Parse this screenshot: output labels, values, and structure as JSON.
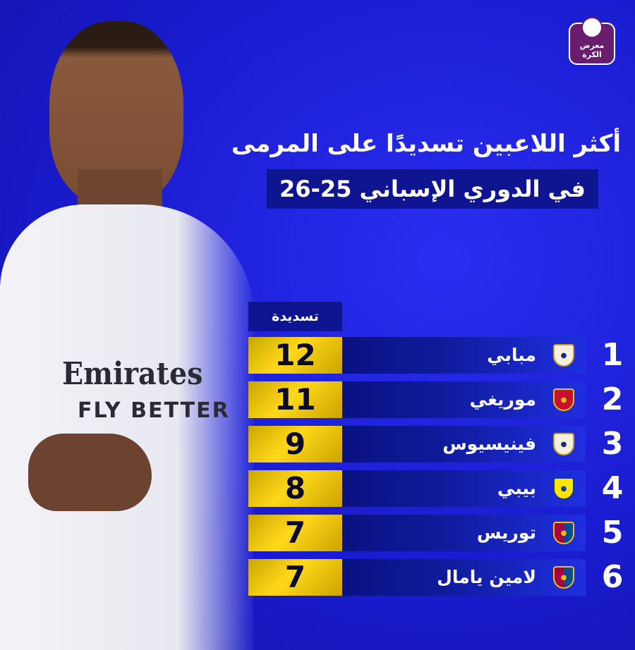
{
  "brand": {
    "logo_text": "معرض الكرة"
  },
  "title": {
    "line1": "أكثر اللاعبين تسديدًا على المرمى",
    "line2": "في الدوري الإسباني 25-26"
  },
  "table": {
    "column_header": "تسديدة",
    "rows": [
      {
        "rank": "1",
        "name": "مبابي",
        "club_icon": "real-madrid-crest",
        "value": "12"
      },
      {
        "rank": "2",
        "name": "موريغي",
        "club_icon": "mallorca-crest",
        "value": "11"
      },
      {
        "rank": "3",
        "name": "فينيسيوس",
        "club_icon": "real-madrid-crest",
        "value": "9"
      },
      {
        "rank": "4",
        "name": "بيبي",
        "club_icon": "villarreal-crest",
        "value": "8"
      },
      {
        "rank": "5",
        "name": "توريس",
        "club_icon": "barcelona-crest",
        "value": "7"
      },
      {
        "rank": "6",
        "name": "لامين يامال",
        "club_icon": "barcelona-crest",
        "value": "7"
      }
    ]
  },
  "player_photo": {
    "sponsor_line1": "Emirates",
    "sponsor_line2": "FLY BETTER"
  },
  "colors": {
    "background": "#1d1fd8",
    "value_gold": "#ffd81a",
    "bar_dark": "#0a1280"
  }
}
